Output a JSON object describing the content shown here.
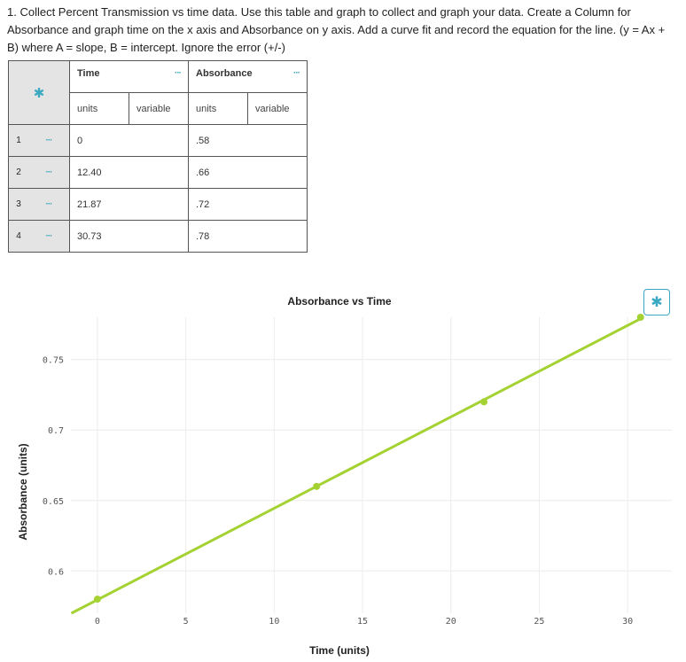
{
  "instructions": "1. Collect Percent Transmission vs time data.  Use this table and graph to collect and graph your data. Create a Column for Absorbance and graph time on the x axis and Absorbance on y axis.  Add a curve fit and record the equation for the line.  (y = Ax + B) where A = slope, B = intercept.  Ignore the error (+/-)",
  "table": {
    "settings_icon": "gear-icon",
    "more_icon": "more-dots-icon",
    "columns": [
      {
        "name": "Time",
        "units_placeholder": "units",
        "variable_placeholder": "variable"
      },
      {
        "name": "Absorbance",
        "units_placeholder": "units",
        "variable_placeholder": "variable"
      }
    ],
    "rows": [
      {
        "num": "1",
        "time": "0",
        "absorbance": ".58"
      },
      {
        "num": "2",
        "time": "12.40",
        "absorbance": ".66"
      },
      {
        "num": "3",
        "time": "21.87",
        "absorbance": ".72"
      },
      {
        "num": "4",
        "time": "30.73",
        "absorbance": ".78"
      }
    ]
  },
  "colors": {
    "accent": "#3aa8c1",
    "series": "#a4d233",
    "grid": "#ececec"
  },
  "chart_data": {
    "type": "line",
    "title": "Absorbance vs Time",
    "xlabel": "Time (units)",
    "ylabel": "Absorbance (units)",
    "xlim": [
      -1.5,
      32.5
    ],
    "ylim": [
      0.57,
      0.78
    ],
    "xticks": [
      0,
      5,
      10,
      15,
      20,
      25,
      30
    ],
    "yticks": [
      0.6,
      0.65,
      0.7,
      0.75
    ],
    "xtick_labels": [
      "0",
      "5",
      "10",
      "15",
      "20",
      "25",
      "30"
    ],
    "ytick_labels": [
      "0.6",
      "0.65",
      "0.7",
      "0.75"
    ],
    "grid": true,
    "series": [
      {
        "x": [
          0,
          12.4,
          21.87,
          30.73
        ],
        "y": [
          0.58,
          0.66,
          0.72,
          0.78
        ]
      }
    ]
  }
}
